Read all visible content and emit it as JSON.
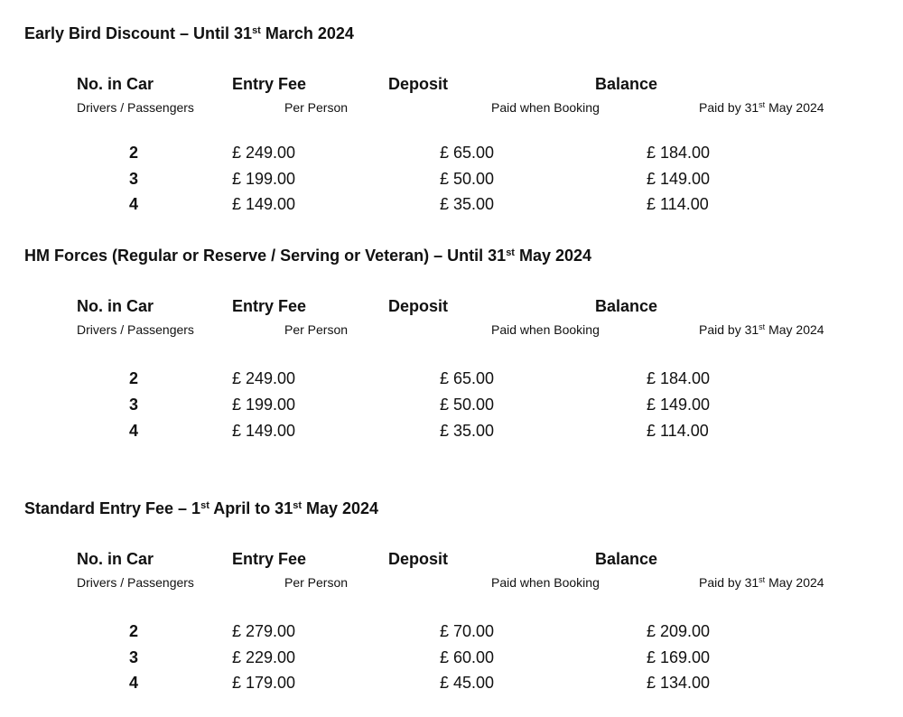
{
  "columns": {
    "no_in_car": "No. in Car",
    "no_in_car_sub": "Drivers / Passengers",
    "entry_fee": "Entry Fee",
    "entry_fee_sub": "Per Person",
    "deposit": "Deposit",
    "deposit_sub": "Paid when Booking",
    "balance": "Balance",
    "balance_sub_pre": "Paid by 31",
    "balance_sub_sup": "st",
    "balance_sub_post": " May 2024"
  },
  "sections": [
    {
      "title_parts": [
        "Early Bird Discount – Until 31",
        "st",
        " March 2024"
      ],
      "rows": [
        {
          "count": "2",
          "entry_fee": "£ 249.00",
          "deposit": "£ 65.00",
          "balance": "£ 184.00"
        },
        {
          "count": "3",
          "entry_fee": "£ 199.00",
          "deposit": "£ 50.00",
          "balance": "£ 149.00"
        },
        {
          "count": "4",
          "entry_fee": "£ 149.00",
          "deposit": "£ 35.00",
          "balance": "£ 114.00"
        }
      ]
    },
    {
      "title_parts": [
        "HM Forces (Regular or Reserve / Serving or Veteran) – Until 31",
        "st",
        " May 2024"
      ],
      "rows": [
        {
          "count": "2",
          "entry_fee": "£ 249.00",
          "deposit": "£ 65.00",
          "balance": "£ 184.00"
        },
        {
          "count": "3",
          "entry_fee": "£ 199.00",
          "deposit": "£ 50.00",
          "balance": "£ 149.00"
        },
        {
          "count": "4",
          "entry_fee": "£ 149.00",
          "deposit": "£ 35.00",
          "balance": "£ 114.00"
        }
      ]
    },
    {
      "title_parts": [
        "Standard Entry Fee – 1",
        "st",
        " April to 31",
        "st",
        " May 2024"
      ],
      "rows": [
        {
          "count": "2",
          "entry_fee": "£ 279.00",
          "deposit": "£ 70.00",
          "balance": "£ 209.00"
        },
        {
          "count": "3",
          "entry_fee": "£ 229.00",
          "deposit": "£ 60.00",
          "balance": "£ 169.00"
        },
        {
          "count": "4",
          "entry_fee": "£ 179.00",
          "deposit": "£ 45.00",
          "balance": "£ 134.00"
        }
      ]
    }
  ]
}
